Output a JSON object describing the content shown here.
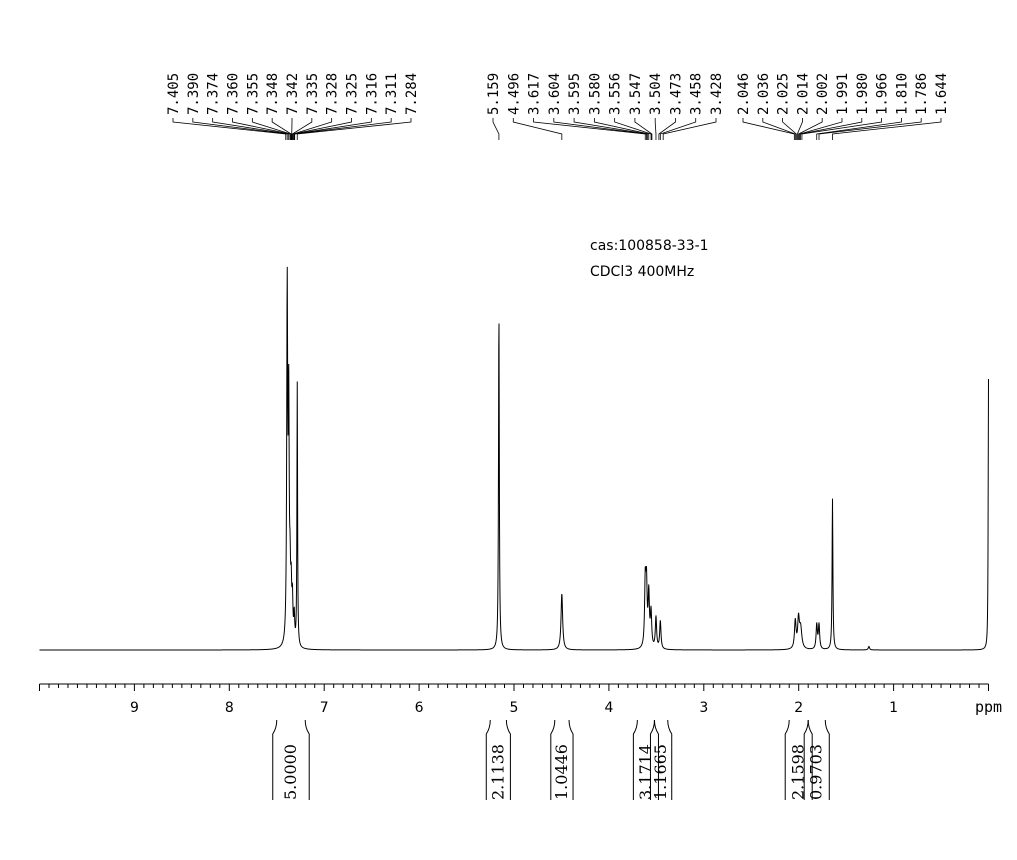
{
  "info": {
    "cas": "cas:100858-33-1",
    "solvent": "CDCl3  400MHz"
  },
  "colors": {
    "line": "#000000",
    "background": "#ffffff"
  },
  "chart_data": {
    "type": "line",
    "title": "",
    "xlabel": "ppm",
    "ylabel": "",
    "xlim": [
      10.0,
      0.0
    ],
    "x_reversed": true,
    "grid": false,
    "x_ticks": [
      9,
      8,
      7,
      6,
      5,
      4,
      3,
      2,
      1
    ],
    "peak_groups": [
      {
        "name": "group-aromatic",
        "labels": [
          "7.405",
          "7.390",
          "7.374",
          "7.360",
          "7.355",
          "7.348",
          "7.342",
          "7.335",
          "7.328",
          "7.325",
          "7.316",
          "7.311",
          "7.284"
        ]
      },
      {
        "name": "group-mid",
        "labels": [
          "5.159",
          "4.496",
          "3.617",
          "3.604",
          "3.595",
          "3.580",
          "3.556",
          "3.547",
          "3.504",
          "3.473",
          "3.458",
          "3.428"
        ]
      },
      {
        "name": "group-aliphatic",
        "labels": [
          "2.046",
          "2.036",
          "2.025",
          "2.014",
          "2.002",
          "1.991",
          "1.980",
          "1.966",
          "1.810",
          "1.786",
          "1.644"
        ]
      }
    ],
    "peaks": [
      {
        "ppm": 7.39,
        "height": 1.0,
        "width": 0.006
      },
      {
        "ppm": 7.374,
        "height": 0.66,
        "width": 0.006
      },
      {
        "ppm": 7.36,
        "height": 0.16,
        "width": 0.006
      },
      {
        "ppm": 7.348,
        "height": 0.14,
        "width": 0.006
      },
      {
        "ppm": 7.335,
        "height": 0.12,
        "width": 0.006
      },
      {
        "ppm": 7.316,
        "height": 0.08,
        "width": 0.006
      },
      {
        "ppm": 7.284,
        "height": 0.75,
        "width": 0.004
      },
      {
        "ppm": 5.159,
        "height": 0.96,
        "width": 0.005
      },
      {
        "ppm": 4.496,
        "height": 0.16,
        "width": 0.01
      },
      {
        "ppm": 3.617,
        "height": 0.18,
        "width": 0.008
      },
      {
        "ppm": 3.604,
        "height": 0.17,
        "width": 0.008
      },
      {
        "ppm": 3.58,
        "height": 0.15,
        "width": 0.008
      },
      {
        "ppm": 3.556,
        "height": 0.1,
        "width": 0.008
      },
      {
        "ppm": 3.504,
        "height": 0.09,
        "width": 0.008
      },
      {
        "ppm": 3.458,
        "height": 0.08,
        "width": 0.008
      },
      {
        "ppm": 2.036,
        "height": 0.08,
        "width": 0.01
      },
      {
        "ppm": 2.002,
        "height": 0.08,
        "width": 0.01
      },
      {
        "ppm": 1.98,
        "height": 0.06,
        "width": 0.015
      },
      {
        "ppm": 1.81,
        "height": 0.07,
        "width": 0.008
      },
      {
        "ppm": 1.786,
        "height": 0.07,
        "width": 0.008
      },
      {
        "ppm": 1.644,
        "height": 0.43,
        "width": 0.005
      },
      {
        "ppm": 1.26,
        "height": 0.01,
        "width": 0.008
      },
      {
        "ppm": 0.0,
        "height": 0.77,
        "width": 0.004
      }
    ],
    "integrals": [
      {
        "from": 7.5,
        "to": 7.2,
        "value": "5.0000"
      },
      {
        "from": 5.25,
        "to": 5.08,
        "value": "2.1138"
      },
      {
        "from": 4.57,
        "to": 4.42,
        "value": "1.0446"
      },
      {
        "from": 3.7,
        "to": 3.52,
        "value": "3.1714"
      },
      {
        "from": 3.52,
        "to": 3.38,
        "value": "1.1665"
      },
      {
        "from": 2.1,
        "to": 1.9,
        "value": "2.1598"
      },
      {
        "from": 1.9,
        "to": 1.72,
        "value": "0.9703"
      }
    ]
  }
}
